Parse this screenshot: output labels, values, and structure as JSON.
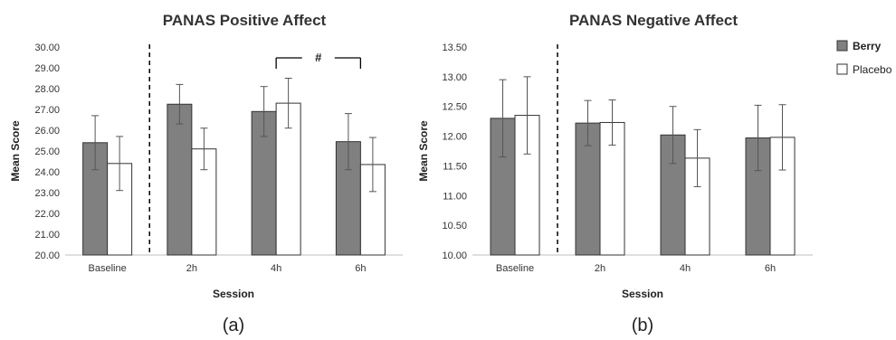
{
  "colors": {
    "berry": "#808080",
    "placebo": "#ffffff",
    "outline": "#333333",
    "text": "#333333"
  },
  "legend": {
    "placement": "right",
    "items": [
      {
        "name": "Berry",
        "color": "#808080"
      },
      {
        "name": "Placebo",
        "color": "#ffffff"
      }
    ]
  },
  "chart_data": [
    {
      "type": "bar",
      "title": "PANAS Positive Affect",
      "xlabel": "Session",
      "ylabel": "Mean Score",
      "panel_label": "(a)",
      "categories": [
        "Baseline",
        "2h",
        "4h",
        "6h"
      ],
      "yticks": [
        "20.00",
        "21.00",
        "22.00",
        "23.00",
        "24.00",
        "25.00",
        "26.00",
        "27.00",
        "28.00",
        "29.00",
        "30.00"
      ],
      "ylim": [
        20,
        30
      ],
      "divider_after": "Baseline",
      "series": [
        {
          "name": "Berry",
          "values": [
            25.4,
            27.25,
            26.9,
            25.45
          ],
          "errors": [
            1.3,
            0.95,
            1.2,
            1.35
          ]
        },
        {
          "name": "Placebo",
          "values": [
            24.4,
            25.1,
            27.3,
            24.35
          ],
          "errors": [
            1.3,
            1.0,
            1.2,
            1.3
          ]
        }
      ],
      "annotations": [
        {
          "text": "#",
          "from": "4h",
          "to": "6h"
        }
      ]
    },
    {
      "type": "bar",
      "title": "PANAS Negative Affect",
      "xlabel": "Session",
      "ylabel": "Mean Score",
      "panel_label": "(b)",
      "categories": [
        "Baseline",
        "2h",
        "4h",
        "6h"
      ],
      "yticks": [
        "10.00",
        "10.50",
        "11.00",
        "11.50",
        "12.00",
        "12.50",
        "13.00",
        "13.50"
      ],
      "ylim": [
        10,
        13.5
      ],
      "divider_after": "Baseline",
      "series": [
        {
          "name": "Berry",
          "values": [
            12.3,
            12.22,
            12.02,
            11.97
          ],
          "errors": [
            0.65,
            0.38,
            0.48,
            0.55
          ]
        },
        {
          "name": "Placebo",
          "values": [
            12.35,
            12.23,
            11.63,
            11.98
          ],
          "errors": [
            0.65,
            0.38,
            0.48,
            0.55
          ]
        }
      ],
      "annotations": []
    }
  ]
}
